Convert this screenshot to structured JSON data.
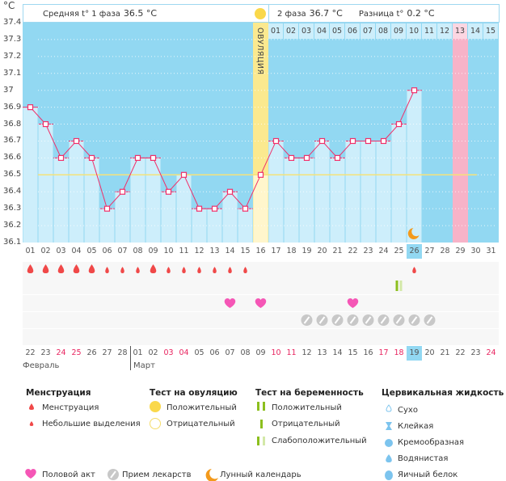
{
  "chart_data": {
    "type": "line",
    "ylabel": "°C",
    "ylim": [
      36.1,
      37.4
    ],
    "yticks": [
      "37.4",
      "37.3",
      "37.2",
      "37.1",
      "37",
      "36.9",
      "36.8",
      "36.7",
      "36.6",
      "36.5",
      "36.4",
      "36.3",
      "36.2",
      "36.1"
    ],
    "days": [
      "01",
      "02",
      "03",
      "04",
      "05",
      "06",
      "07",
      "08",
      "09",
      "10",
      "11",
      "12",
      "13",
      "14",
      "15",
      "16",
      "17",
      "18",
      "19",
      "20",
      "21",
      "22",
      "23",
      "24",
      "25",
      "26",
      "27",
      "28",
      "29",
      "30",
      "31"
    ],
    "temperatures": [
      36.9,
      36.8,
      36.6,
      36.7,
      36.6,
      36.3,
      36.4,
      36.6,
      36.6,
      36.4,
      36.5,
      36.3,
      36.3,
      36.4,
      36.3,
      36.5,
      36.7,
      36.6,
      36.6,
      36.7,
      36.6,
      36.7,
      36.7,
      36.7,
      36.8,
      37.0
    ],
    "coverline": 36.5,
    "ovulation_day": 16,
    "ovulation_label": "ОВУЛЯЦИЯ",
    "current_day": 26,
    "expected_period_day": 29,
    "moon_day": 26,
    "phase2_days": [
      "01",
      "02",
      "03",
      "04",
      "05",
      "06",
      "07",
      "08",
      "09",
      "10",
      "11",
      "12",
      "13",
      "14",
      "15"
    ],
    "dates": [
      "22",
      "23",
      "24",
      "25",
      "26",
      "27",
      "28",
      "01",
      "02",
      "03",
      "04",
      "05",
      "06",
      "07",
      "08",
      "09",
      "10",
      "11",
      "12",
      "13",
      "14",
      "15",
      "16",
      "17",
      "18",
      "19",
      "20",
      "21",
      "22",
      "23",
      "24"
    ],
    "weekend_dates": [
      3,
      4,
      10,
      11,
      17,
      18,
      24,
      25,
      31
    ],
    "months": [
      "Февраль",
      "Март"
    ],
    "menstruation": {
      "heavy": [
        1,
        2,
        3,
        4,
        5,
        9
      ],
      "light": [
        6,
        7,
        8,
        10,
        11,
        12,
        13,
        14,
        15,
        26
      ]
    },
    "pregnancy_test": {
      "weak_positive": [
        25
      ]
    },
    "intercourse": [
      14,
      16,
      22
    ],
    "medication": [
      19,
      20,
      21,
      22,
      23,
      24,
      25,
      26,
      27
    ]
  },
  "header": {
    "phase1_label": "Средняя t° 1 фаза",
    "phase1_value": "36.5 °C",
    "phase2_label": "2 фаза",
    "phase2_value": "36.7 °C",
    "diff_label": "Разница t°",
    "diff_value": "0.2 °C"
  },
  "legend": {
    "menstruation": {
      "title": "Менструация",
      "items": [
        "Менструация",
        "Небольшие выделения"
      ]
    },
    "ovulation_test": {
      "title": "Тест на овуляцию",
      "items": [
        "Положительный",
        "Отрицательный"
      ]
    },
    "pregnancy_test": {
      "title": "Тест на беременность",
      "items": [
        "Положительный",
        "Отрицательный",
        "Слабоположительный"
      ]
    },
    "cervical": {
      "title": "Цервикальная жидкость",
      "items": [
        "Сухо",
        "Клейкая",
        "Кремообразная",
        "Водянистая",
        "Яичный белок"
      ]
    },
    "other": [
      "Половой акт",
      "Прием лекарств",
      "Лунный календарь"
    ]
  },
  "colors": {
    "sky": "#92d8f2",
    "bar": "#cdeefb",
    "line": "#f0306a",
    "coverline": "#f5e27a",
    "ovulation": "#fbe98f",
    "period": "#f7b3c8",
    "drop": "#f04848",
    "heart": "#f556b6",
    "pill": "#c8c8c8",
    "moon": "#f39a1c",
    "test": "#8cbf1e",
    "weekend": "#e8245f"
  }
}
